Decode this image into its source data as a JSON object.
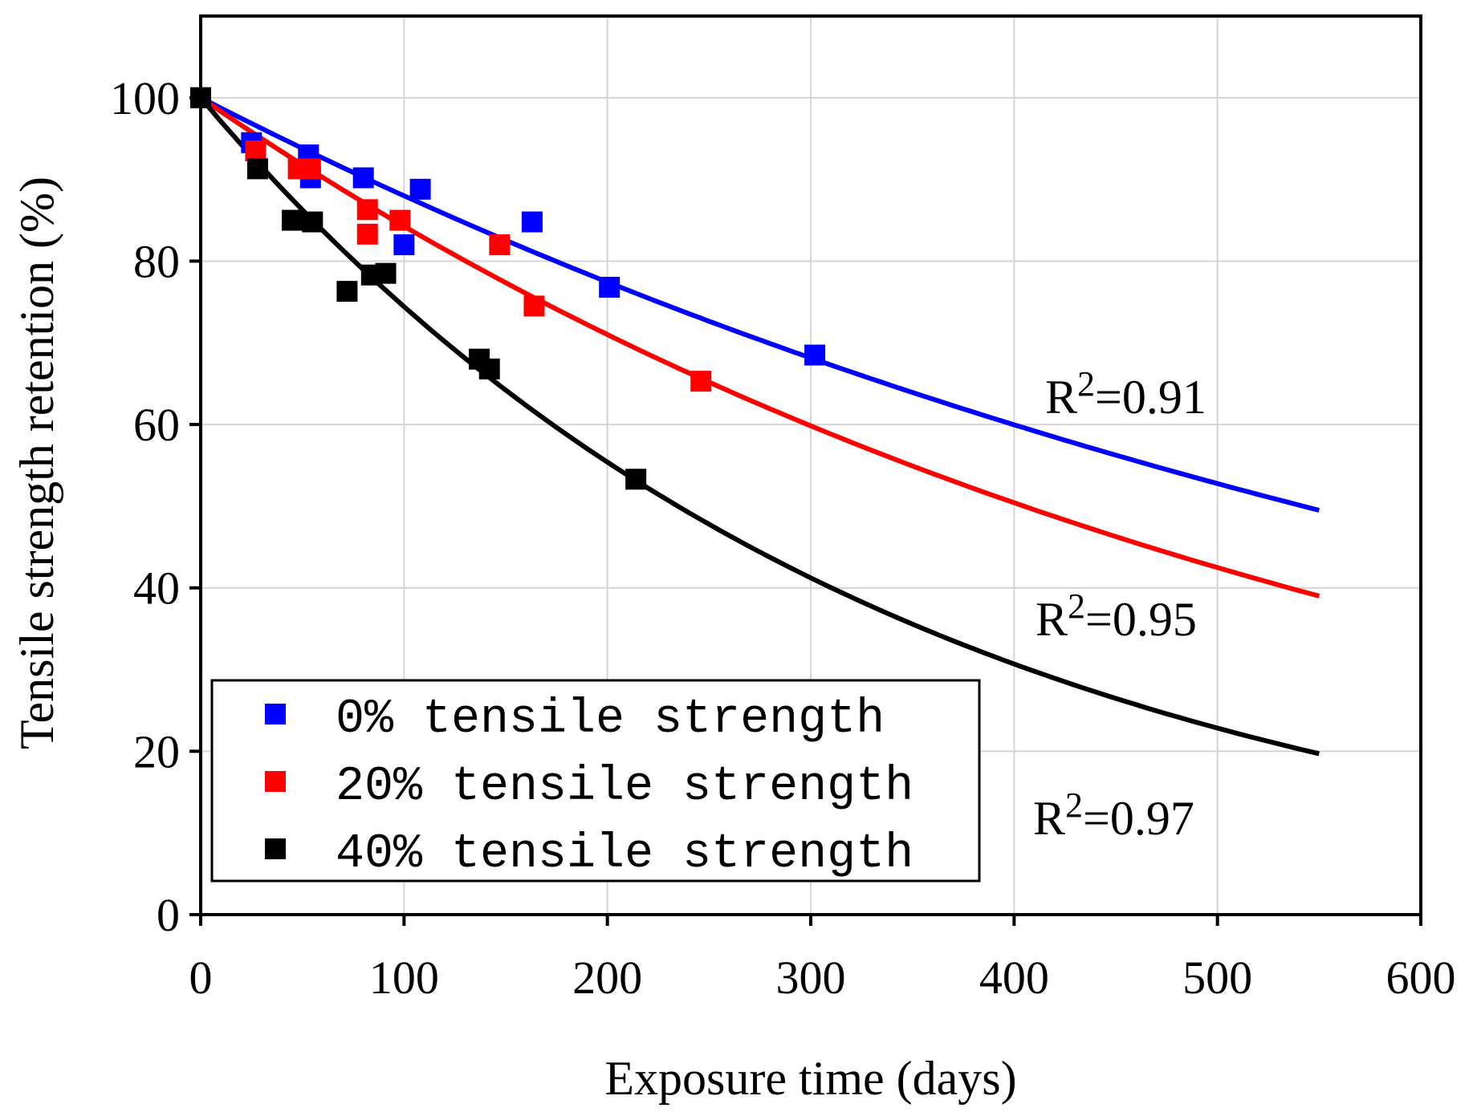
{
  "chart_data": {
    "type": "scatter",
    "title": "",
    "xlabel": "Exposure time (days)",
    "ylabel": "Tensile strength retention (%)",
    "xlim": [
      0,
      600
    ],
    "ylim": [
      0,
      110
    ],
    "xticks": [
      "0",
      "100",
      "200",
      "300",
      "400",
      "500",
      "600"
    ],
    "yticks": [
      "0",
      "20",
      "40",
      "60",
      "80",
      "100"
    ],
    "grid": true,
    "legend_position": "bottom-left",
    "series": [
      {
        "name": "0% tensile strength",
        "color": "#0000ff",
        "points": [
          [
            0,
            100
          ],
          [
            25,
            94.5
          ],
          [
            53,
            93
          ],
          [
            54,
            90.2
          ],
          [
            80,
            90.2
          ],
          [
            100,
            82
          ],
          [
            108,
            88.8
          ],
          [
            163,
            84.8
          ],
          [
            201,
            76.8
          ],
          [
            302,
            68.5
          ]
        ],
        "fit": {
          "x_end": 550,
          "y_end": 49.5,
          "r2_label": "R",
          "r2_sup": "2",
          "r2_value": "=0.91"
        }
      },
      {
        "name": "20% tensile strength",
        "color": "#ff0000",
        "points": [
          [
            0,
            100
          ],
          [
            27,
            93.5
          ],
          [
            48,
            91.3
          ],
          [
            54,
            91.3
          ],
          [
            82,
            86.3
          ],
          [
            82,
            83.3
          ],
          [
            98,
            85
          ],
          [
            147,
            82
          ],
          [
            164,
            74.5
          ],
          [
            246,
            65.3
          ]
        ],
        "fit": {
          "x_end": 550,
          "y_end": 39,
          "r2_label": "R",
          "r2_sup": "2",
          "r2_value": "=0.95"
        }
      },
      {
        "name": "40% tensile strength",
        "color": "#000000",
        "points": [
          [
            0,
            100
          ],
          [
            28,
            91.3
          ],
          [
            45,
            85
          ],
          [
            55,
            84.8
          ],
          [
            72,
            76.3
          ],
          [
            84,
            78.3
          ],
          [
            91,
            78.5
          ],
          [
            137,
            68
          ],
          [
            142,
            66.8
          ],
          [
            214,
            53.3
          ]
        ],
        "fit": {
          "x_end": 550,
          "y_end": 19.7,
          "r2_label": "R",
          "r2_sup": "2",
          "r2_value": "=0.97"
        }
      }
    ]
  }
}
